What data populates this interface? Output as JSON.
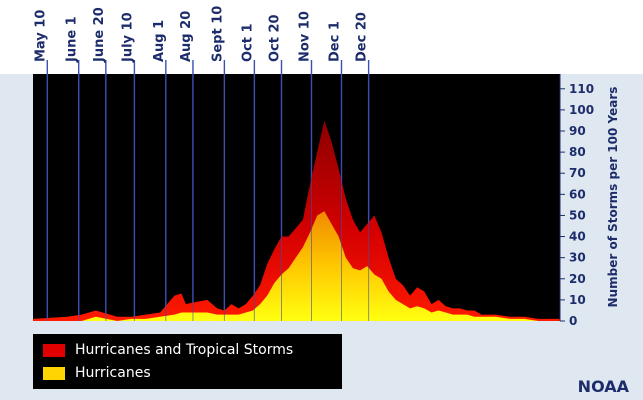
{
  "chart_data": {
    "type": "area",
    "ylabel": "Number of Storms per 100 Years",
    "ylim": [
      0,
      117
    ],
    "yticks": [
      0,
      10,
      20,
      30,
      40,
      50,
      60,
      70,
      80,
      90,
      100,
      110
    ],
    "date_labels": [
      "May 10",
      "June 1",
      "June 20",
      "July 10",
      "Aug 1",
      "Aug 20",
      "Sept 10",
      "Oct 1",
      "Oct 20",
      "Nov 10",
      "Dec 1",
      "Dec 20"
    ],
    "x_days": [
      -4,
      20,
      30,
      40,
      55,
      65,
      75,
      85,
      95,
      100,
      103,
      110,
      118,
      125,
      130,
      135,
      140,
      145,
      150,
      155,
      160,
      165,
      170,
      175,
      180,
      185,
      190,
      195,
      200,
      205,
      210,
      215,
      220,
      225,
      230,
      235,
      240,
      245,
      250,
      255,
      260,
      265,
      270,
      275,
      280,
      285,
      290,
      295,
      300,
      305,
      310,
      315,
      320,
      330,
      340,
      350,
      360,
      365
    ],
    "series": [
      {
        "name": "Hurricanes and Tropical Storms",
        "color": "#e00000",
        "values": [
          1,
          2,
          3,
          5,
          2,
          2,
          3,
          4,
          12,
          13,
          8,
          9,
          10,
          6,
          5,
          8,
          6,
          8,
          12,
          17,
          27,
          34,
          40,
          40,
          44,
          48,
          65,
          80,
          95,
          85,
          72,
          58,
          48,
          42,
          46,
          50,
          42,
          30,
          20,
          17,
          12,
          16,
          14,
          8,
          10,
          7,
          6,
          6,
          5,
          5,
          3,
          3,
          3,
          2,
          2,
          1,
          1,
          1
        ]
      },
      {
        "name": "Hurricanes",
        "color": "#ffd400",
        "values": [
          0,
          0,
          0,
          2,
          0,
          1,
          1,
          2,
          3,
          4,
          4,
          4,
          4,
          3,
          3,
          3,
          3,
          4,
          5,
          8,
          12,
          18,
          22,
          25,
          30,
          35,
          42,
          50,
          52,
          46,
          40,
          30,
          25,
          24,
          26,
          22,
          20,
          14,
          10,
          8,
          6,
          7,
          6,
          4,
          5,
          4,
          3,
          3,
          3,
          2,
          2,
          2,
          2,
          1,
          1,
          0,
          0,
          0
        ]
      }
    ],
    "legend": [
      {
        "label": "Hurricanes and Tropical Storms",
        "color": "#e00000"
      },
      {
        "label": "Hurricanes",
        "color": "#ffd400"
      }
    ]
  },
  "footer": {
    "credit": "NOAA"
  }
}
